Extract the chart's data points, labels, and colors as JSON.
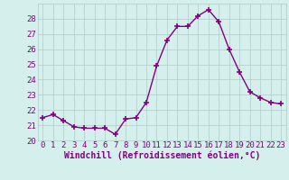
{
  "x": [
    0,
    1,
    2,
    3,
    4,
    5,
    6,
    7,
    8,
    9,
    10,
    11,
    12,
    13,
    14,
    15,
    16,
    17,
    18,
    19,
    20,
    21,
    22,
    23
  ],
  "y": [
    21.5,
    21.7,
    21.3,
    20.9,
    20.8,
    20.8,
    20.8,
    20.4,
    21.4,
    21.5,
    22.5,
    24.9,
    26.6,
    27.5,
    27.5,
    28.2,
    28.6,
    27.8,
    26.0,
    24.5,
    23.2,
    22.8,
    22.5,
    22.4
  ],
  "line_color": "#800080",
  "marker": "+",
  "marker_size": 4,
  "marker_lw": 1.2,
  "bg_color": "#d5f0ec",
  "grid_color": "#b0ccc8",
  "tick_color": "#800080",
  "label_color": "#800080",
  "xlabel": "Windchill (Refroidissement éolien,°C)",
  "ylim": [
    20,
    29
  ],
  "xlim": [
    -0.5,
    23.5
  ],
  "yticks": [
    20,
    21,
    22,
    23,
    24,
    25,
    26,
    27,
    28
  ],
  "xticks": [
    0,
    1,
    2,
    3,
    4,
    5,
    6,
    7,
    8,
    9,
    10,
    11,
    12,
    13,
    14,
    15,
    16,
    17,
    18,
    19,
    20,
    21,
    22,
    23
  ],
  "xtick_labels": [
    "0",
    "1",
    "2",
    "3",
    "4",
    "5",
    "6",
    "7",
    "8",
    "9",
    "10",
    "11",
    "12",
    "13",
    "14",
    "15",
    "16",
    "17",
    "18",
    "19",
    "20",
    "21",
    "22",
    "23"
  ],
  "fontsize_ticks": 6.5,
  "fontsize_xlabel": 7.0,
  "linewidth": 1.0
}
